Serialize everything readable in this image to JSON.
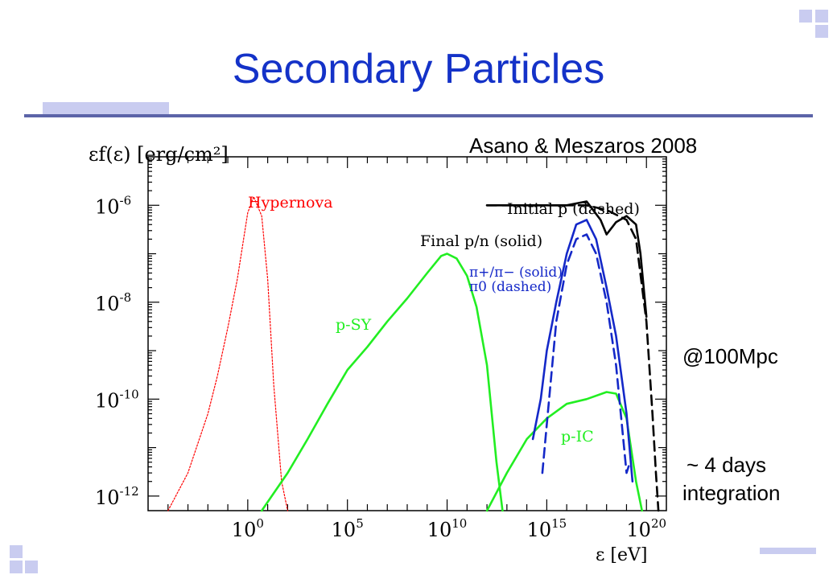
{
  "slide": {
    "title": "Secondary Particles",
    "citation": "Asano & Meszaros 2008",
    "note_distance": "@100Mpc",
    "note_integration_line1": "~ 4 days",
    "note_integration_line2": "integration",
    "accent_color": "#1432c8",
    "decoration_color": "#c9ccf0"
  },
  "chart_data": {
    "type": "line",
    "ylabel": "εf(ε) [erg/cm²]",
    "xlabel": "ε [eV]",
    "x_scale": "log",
    "y_scale": "log",
    "xlim": [
      1e-05,
      1e+21
    ],
    "ylim": [
      5e-13,
      1e-05
    ],
    "x_ticks": [
      {
        "value": 1,
        "label_base": "10",
        "label_exp": "0"
      },
      {
        "value": 100000.0,
        "label_base": "10",
        "label_exp": "5"
      },
      {
        "value": 10000000000.0,
        "label_base": "10",
        "label_exp": "10"
      },
      {
        "value": 1000000000000000.0,
        "label_base": "10",
        "label_exp": "15"
      },
      {
        "value": 1e+20,
        "label_base": "10",
        "label_exp": "20"
      }
    ],
    "y_ticks": [
      {
        "value": 1e-06,
        "label_base": "10",
        "label_exp": "-6"
      },
      {
        "value": 1e-08,
        "label_base": "10",
        "label_exp": "-8"
      },
      {
        "value": 1e-10,
        "label_base": "10",
        "label_exp": "-10"
      },
      {
        "value": 1e-12,
        "label_base": "10",
        "label_exp": "-12"
      }
    ],
    "series": [
      {
        "name": "Hypernova",
        "color": "#ff0000",
        "style": "dotted",
        "x": [
          0.0001,
          0.001,
          0.01,
          0.03,
          0.1,
          0.3,
          1,
          2,
          5,
          10,
          20,
          50,
          100
        ],
        "y": [
          5e-13,
          3e-12,
          5e-11,
          3e-10,
          3e-09,
          3e-08,
          7e-07,
          1.5e-06,
          6e-07,
          3e-08,
          2e-10,
          2e-12,
          5e-13
        ]
      },
      {
        "name": "p-SY",
        "color": "#22ee22",
        "style": "solid",
        "x": [
          5,
          100,
          1000.0,
          10000.0,
          100000.0,
          1000000.0,
          10000000.0,
          100000000.0,
          1000000000.0,
          5000000000.0,
          10000000000.0,
          30000000000.0,
          100000000000.0,
          300000000000.0,
          1000000000000.0,
          3000000000000.0,
          6000000000000.0
        ],
        "y": [
          5e-13,
          3e-12,
          1.5e-11,
          8e-11,
          4e-10,
          1.2e-09,
          4e-09,
          1.2e-08,
          4e-08,
          9e-08,
          1e-07,
          8e-08,
          3.5e-08,
          8e-09,
          5e-10,
          5e-12,
          5e-13
        ]
      },
      {
        "name": "p-IC",
        "color": "#22ee22",
        "style": "solid",
        "x": [
          1000000000000.0,
          10000000000000.0,
          100000000000000.0,
          1000000000000000.0,
          1e+16,
          1e+17,
          1e+18,
          3e+18,
          1e+19,
          3e+19,
          6e+19
        ],
        "y": [
          5e-13,
          3e-12,
          1.5e-11,
          4e-11,
          8e-11,
          1e-10,
          1.4e-10,
          1.3e-10,
          4e-11,
          2e-12,
          5e-13
        ]
      },
      {
        "name": "Initial p (dashed)",
        "color": "#000000",
        "style": "dashed",
        "x": [
          1000000000000.0,
          1000000000000000.0,
          1e+16,
          1e+17,
          1e+18,
          1e+19,
          3e+19,
          1e+20,
          2e+20,
          3e+20,
          4e+20
        ],
        "y": [
          1e-06,
          1e-06,
          1e-06,
          1e-06,
          8e-07,
          5e-07,
          2e-07,
          4e-09,
          5e-11,
          3e-12,
          5e-13
        ]
      },
      {
        "name": "Final p/n (solid)",
        "color": "#000000",
        "style": "solid",
        "x": [
          1000000000000.0,
          1e+16,
          1e+17,
          5e+17,
          1e+18,
          3e+18,
          1e+19,
          3e+19,
          5e+19,
          1e+20
        ],
        "y": [
          1e-06,
          1e-06,
          1.2e-06,
          5e-07,
          2.5e-07,
          4.5e-07,
          6e-07,
          4e-07,
          1e-07,
          5e-09
        ]
      },
      {
        "name": "π+/π− (solid)",
        "color": "#1428c8",
        "style": "solid",
        "x": [
          200000000000000.0,
          500000000000000.0,
          1000000000000000.0,
          3000000000000000.0,
          1e+16,
          3e+16,
          1e+17,
          3e+17,
          1e+18,
          3e+18,
          1e+19,
          2e+19
        ],
        "y": [
          1.5e-11,
          1e-10,
          1e-09,
          1e-08,
          1e-07,
          4e-07,
          5e-07,
          2e-07,
          2e-08,
          2e-09,
          5e-11,
          2e-12
        ]
      },
      {
        "name": "π0 (dashed)",
        "color": "#1428c8",
        "style": "dashed",
        "x": [
          600000000000000.0,
          1000000000000000.0,
          3000000000000000.0,
          1e+16,
          3e+16,
          1e+17,
          3e+17,
          1e+18,
          3e+18,
          1e+19,
          1.5e+19
        ],
        "y": [
          3e-12,
          3e-11,
          4e-09,
          6e-08,
          2e-07,
          2.5e-07,
          1e-07,
          1e-08,
          5e-10,
          3e-12,
          5e-12
        ]
      }
    ],
    "annotations": [
      {
        "text": "Hypernova",
        "color": "#ff0000"
      },
      {
        "text": "p-SY",
        "color": "#22ee22"
      },
      {
        "text": "p-IC",
        "color": "#22ee22"
      },
      {
        "text": "Initial p (dashed)",
        "color": "#000000"
      },
      {
        "text": "Final p/n (solid)",
        "color": "#000000"
      },
      {
        "text": "π+/π− (solid)",
        "color": "#1428c8"
      },
      {
        "text": "π0 (dashed)",
        "color": "#1428c8"
      }
    ]
  }
}
